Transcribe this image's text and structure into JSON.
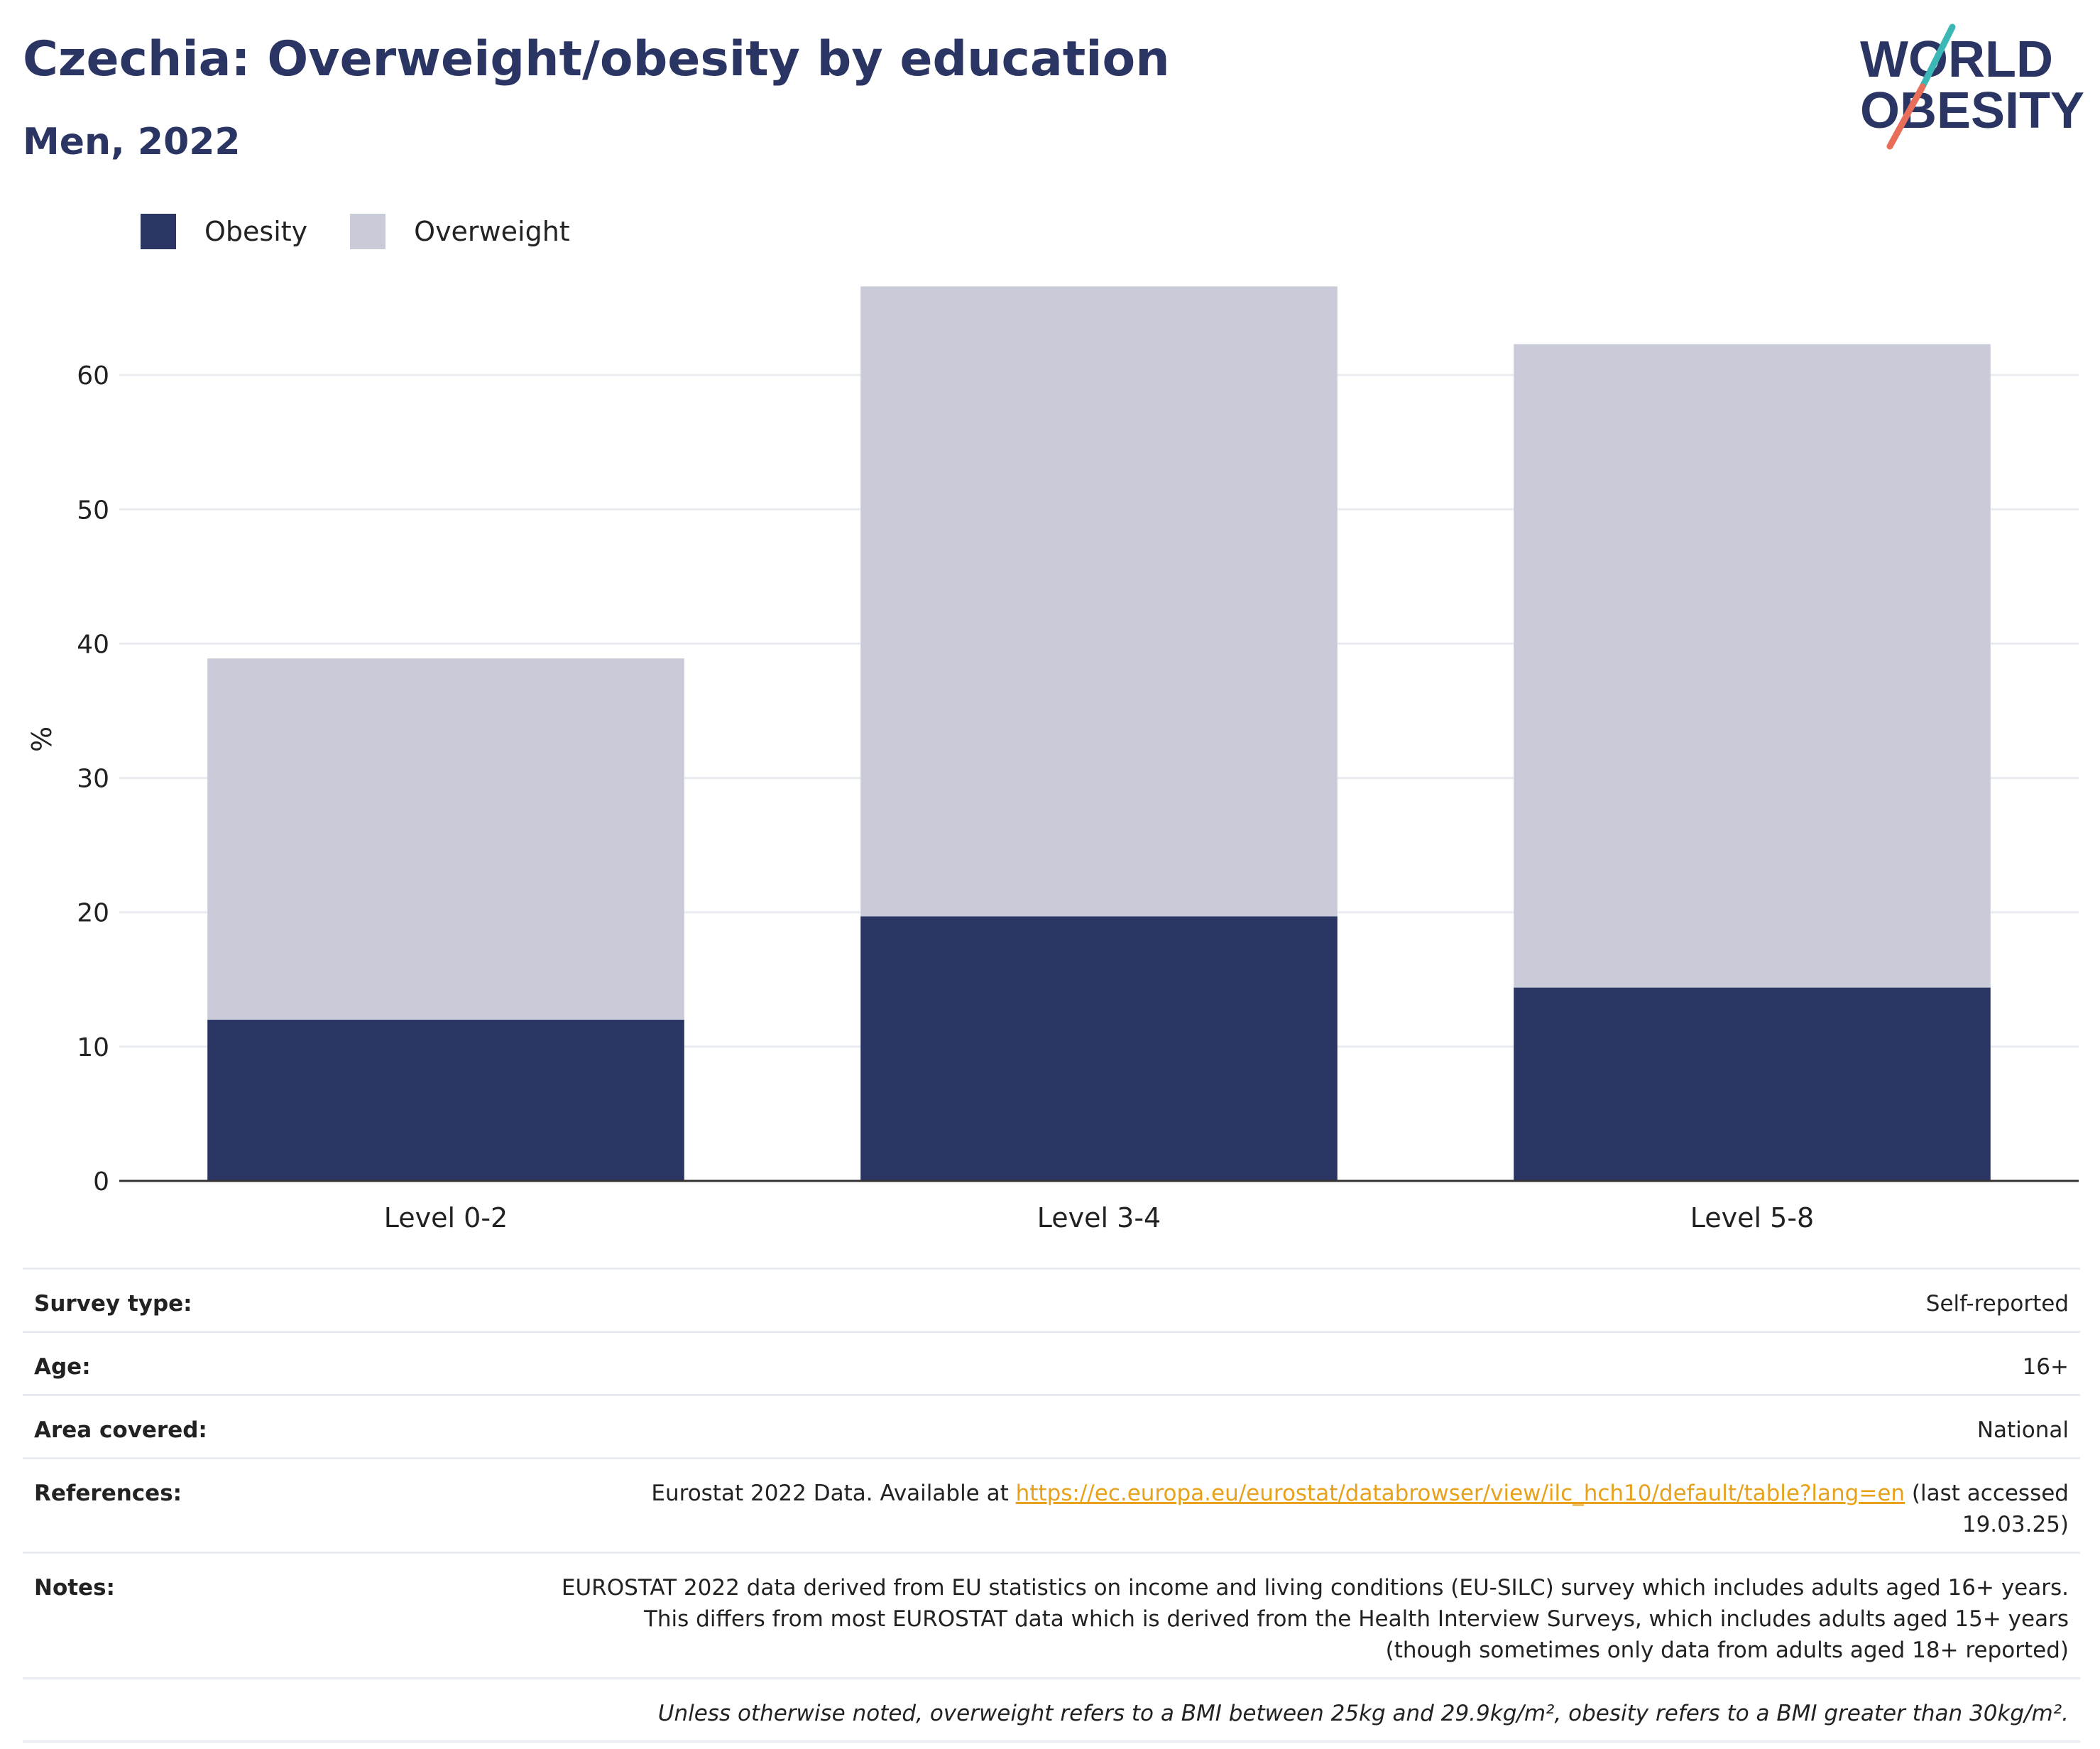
{
  "header": {
    "title": "Czechia: Overweight/obesity by education",
    "subtitle": "Men, 2022"
  },
  "logo": {
    "line1": "WORLD",
    "line2": "OBESITY",
    "colors": {
      "text": "#2b3563",
      "slash_top": "#3bb8b5",
      "slash_bottom": "#e86e5a"
    }
  },
  "legend": {
    "items": [
      {
        "label": "Obesity",
        "color": "#2b3563"
      },
      {
        "label": "Overweight",
        "color": "#c9ccd8"
      }
    ]
  },
  "chart_data": {
    "type": "bar",
    "stacked": true,
    "categories": [
      "Level 0-2",
      "Level 3-4",
      "Level 5-8"
    ],
    "series": [
      {
        "name": "Obesity",
        "values": [
          12.0,
          19.7,
          14.4
        ],
        "color": "#2b3563"
      },
      {
        "name": "Overweight",
        "values": [
          26.9,
          46.9,
          47.9
        ],
        "color": "#c9ccd8"
      }
    ],
    "totals": [
      38.9,
      66.6,
      62.3
    ],
    "ylabel": "%",
    "ylim": [
      0,
      70
    ],
    "yticks": [
      0,
      10,
      20,
      30,
      40,
      50,
      60
    ],
    "grid": true,
    "legend_position": "top-left"
  },
  "info": {
    "survey_type_label": "Survey type:",
    "survey_type_value": "Self-reported",
    "age_label": "Age:",
    "age_value": "16+",
    "area_label": "Area covered:",
    "area_value": "National",
    "references_label": "References:",
    "references_prefix": "Eurostat 2022 Data. Available at ",
    "references_link": "https://ec.europa.eu/eurostat/databrowser/view/ilc_hch10/default/table?lang=en",
    "references_suffix": " (last accessed 19.03.25)",
    "notes_label": "Notes:",
    "notes_value": "EUROSTAT 2022 data derived from EU statistics on income and living conditions (EU-SILC) survey which includes adults aged 16+ years. This differs from most EUROSTAT data which is derived from the Health Interview Surveys, which includes adults aged 15+ years (though sometimes only data from adults aged 18+ reported)",
    "footnote": "Unless otherwise noted, overweight refers to a BMI between 25kg and 29.9kg/m², obesity refers to a BMI greater than 30kg/m²."
  }
}
